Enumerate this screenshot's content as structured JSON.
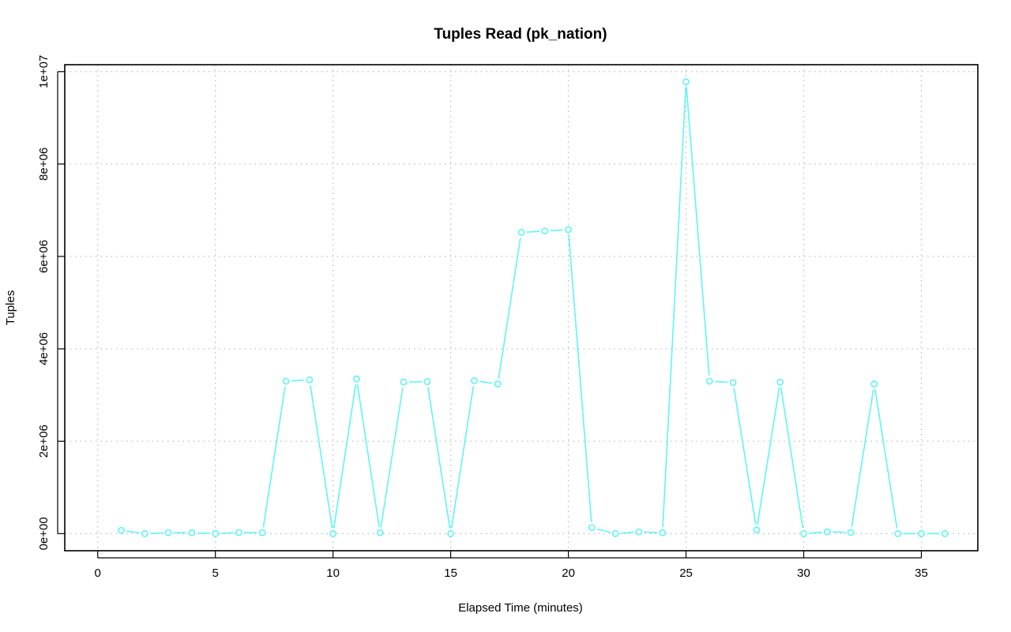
{
  "chart_data": {
    "type": "line",
    "title": "Tuples Read (pk_nation)",
    "xlabel": "Elapsed Time (minutes)",
    "ylabel": "Tuples",
    "xlim": [
      -1.4,
      37.4
    ],
    "ylim": [
      -370000,
      10150000
    ],
    "x_ticks": [
      0,
      5,
      10,
      15,
      20,
      25,
      30,
      35
    ],
    "x_tick_labels": [
      "0",
      "5",
      "10",
      "15",
      "20",
      "25",
      "30",
      "35"
    ],
    "y_ticks": [
      0,
      2000000,
      4000000,
      6000000,
      8000000,
      10000000
    ],
    "y_tick_labels": [
      "0e+00",
      "2e+06",
      "4e+06",
      "6e+06",
      "8e+06",
      "1e+07"
    ],
    "grid": true,
    "series": [
      {
        "color": "#5ff5f5",
        "x": [
          1,
          2,
          3,
          4,
          5,
          6,
          7,
          8,
          9,
          10,
          11,
          12,
          13,
          14,
          15,
          16,
          17,
          18,
          19,
          20,
          21,
          22,
          23,
          24,
          25,
          26,
          27,
          28,
          29,
          30,
          31,
          32,
          33,
          34,
          35,
          36
        ],
        "values": [
          70000,
          0,
          20000,
          20000,
          0,
          25000,
          20000,
          3300000,
          3330000,
          0,
          3350000,
          20000,
          3280000,
          3290000,
          0,
          3310000,
          3240000,
          6520000,
          6550000,
          6580000,
          130000,
          0,
          40000,
          20000,
          9780000,
          3300000,
          3270000,
          80000,
          3280000,
          0,
          40000,
          25000,
          3240000,
          0,
          0,
          0
        ]
      }
    ]
  }
}
